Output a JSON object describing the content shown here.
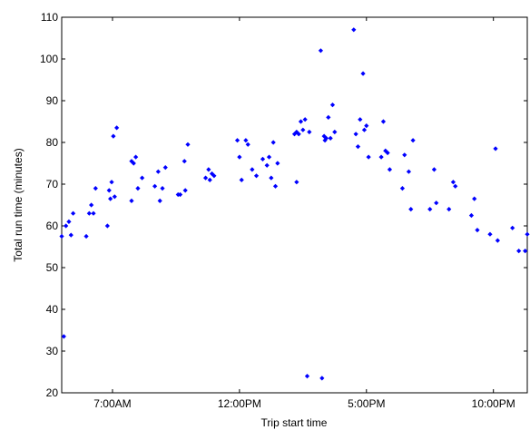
{
  "chart_data": {
    "type": "scatter",
    "title": "",
    "xlabel": "Trip start time",
    "ylabel": "Total run time (minutes)",
    "x_unit": "time of day (24h)",
    "xlim": [
      "05:00",
      "23:20"
    ],
    "ylim": [
      20,
      110
    ],
    "x_ticks": [
      {
        "value": "07:00",
        "label": "7:00AM"
      },
      {
        "value": "12:00",
        "label": "12:00PM"
      },
      {
        "value": "17:00",
        "label": "5:00PM"
      },
      {
        "value": "22:00",
        "label": "10:00PM"
      }
    ],
    "y_ticks": [
      20,
      30,
      40,
      50,
      60,
      70,
      80,
      90,
      100,
      110
    ],
    "marker_color": "#0000ff",
    "grid": false,
    "legend": "none",
    "points": [
      {
        "x": "05:00",
        "y": 57.5
      },
      {
        "x": "05:05",
        "y": 33.5
      },
      {
        "x": "05:10",
        "y": 60.0
      },
      {
        "x": "05:17",
        "y": 61.0
      },
      {
        "x": "05:22",
        "y": 57.8
      },
      {
        "x": "05:27",
        "y": 63.0
      },
      {
        "x": "05:58",
        "y": 57.5
      },
      {
        "x": "06:05",
        "y": 63.0
      },
      {
        "x": "06:10",
        "y": 65.0
      },
      {
        "x": "06:15",
        "y": 63.0
      },
      {
        "x": "06:20",
        "y": 69.0
      },
      {
        "x": "06:48",
        "y": 60.0
      },
      {
        "x": "06:52",
        "y": 68.5
      },
      {
        "x": "06:55",
        "y": 66.5
      },
      {
        "x": "06:58",
        "y": 70.5
      },
      {
        "x": "07:02",
        "y": 81.5
      },
      {
        "x": "07:05",
        "y": 67.0
      },
      {
        "x": "07:10",
        "y": 83.5
      },
      {
        "x": "07:45",
        "y": 66.0
      },
      {
        "x": "07:45",
        "y": 75.5
      },
      {
        "x": "07:50",
        "y": 75.0
      },
      {
        "x": "07:55",
        "y": 76.5
      },
      {
        "x": "08:00",
        "y": 69.0
      },
      {
        "x": "08:10",
        "y": 71.5
      },
      {
        "x": "08:40",
        "y": 69.5
      },
      {
        "x": "08:48",
        "y": 73.0
      },
      {
        "x": "08:52",
        "y": 66.0
      },
      {
        "x": "08:58",
        "y": 69.0
      },
      {
        "x": "09:05",
        "y": 74.0
      },
      {
        "x": "09:35",
        "y": 67.5
      },
      {
        "x": "09:40",
        "y": 67.5
      },
      {
        "x": "09:50",
        "y": 75.5
      },
      {
        "x": "09:52",
        "y": 68.5
      },
      {
        "x": "09:58",
        "y": 79.5
      },
      {
        "x": "10:40",
        "y": 71.5
      },
      {
        "x": "10:47",
        "y": 73.5
      },
      {
        "x": "10:50",
        "y": 71.0
      },
      {
        "x": "10:55",
        "y": 72.5
      },
      {
        "x": "11:00",
        "y": 72.0
      },
      {
        "x": "11:55",
        "y": 80.5
      },
      {
        "x": "12:00",
        "y": 76.5
      },
      {
        "x": "12:05",
        "y": 71.0
      },
      {
        "x": "12:15",
        "y": 80.5
      },
      {
        "x": "12:20",
        "y": 79.5
      },
      {
        "x": "12:30",
        "y": 73.5
      },
      {
        "x": "12:40",
        "y": 72.0
      },
      {
        "x": "12:55",
        "y": 76.0
      },
      {
        "x": "13:05",
        "y": 74.5
      },
      {
        "x": "13:10",
        "y": 76.5
      },
      {
        "x": "13:15",
        "y": 71.5
      },
      {
        "x": "13:20",
        "y": 80.0
      },
      {
        "x": "13:25",
        "y": 69.5
      },
      {
        "x": "13:30",
        "y": 75.0
      },
      {
        "x": "14:10",
        "y": 82.0
      },
      {
        "x": "14:15",
        "y": 82.5
      },
      {
        "x": "14:15",
        "y": 70.5
      },
      {
        "x": "14:20",
        "y": 82.0
      },
      {
        "x": "14:25",
        "y": 85.0
      },
      {
        "x": "14:30",
        "y": 83.0
      },
      {
        "x": "14:35",
        "y": 85.5
      },
      {
        "x": "14:40",
        "y": 24.0
      },
      {
        "x": "14:45",
        "y": 82.5
      },
      {
        "x": "15:12",
        "y": 102.0
      },
      {
        "x": "15:15",
        "y": 23.5
      },
      {
        "x": "15:20",
        "y": 81.5
      },
      {
        "x": "15:22",
        "y": 80.5
      },
      {
        "x": "15:25",
        "y": 81.0
      },
      {
        "x": "15:30",
        "y": 86.0
      },
      {
        "x": "15:35",
        "y": 81.0
      },
      {
        "x": "15:40",
        "y": 89.0
      },
      {
        "x": "15:45",
        "y": 82.5
      },
      {
        "x": "16:30",
        "y": 107.0
      },
      {
        "x": "16:35",
        "y": 82.0
      },
      {
        "x": "16:40",
        "y": 79.0
      },
      {
        "x": "16:45",
        "y": 85.5
      },
      {
        "x": "16:52",
        "y": 96.5
      },
      {
        "x": "16:55",
        "y": 83.0
      },
      {
        "x": "17:00",
        "y": 84.0
      },
      {
        "x": "17:05",
        "y": 76.5
      },
      {
        "x": "17:35",
        "y": 76.5
      },
      {
        "x": "17:40",
        "y": 85.0
      },
      {
        "x": "17:45",
        "y": 78.0
      },
      {
        "x": "17:50",
        "y": 77.5
      },
      {
        "x": "17:55",
        "y": 73.5
      },
      {
        "x": "18:25",
        "y": 69.0
      },
      {
        "x": "18:30",
        "y": 77.0
      },
      {
        "x": "18:40",
        "y": 73.0
      },
      {
        "x": "18:45",
        "y": 64.0
      },
      {
        "x": "18:50",
        "y": 80.5
      },
      {
        "x": "19:30",
        "y": 64.0
      },
      {
        "x": "19:40",
        "y": 73.5
      },
      {
        "x": "19:45",
        "y": 65.5
      },
      {
        "x": "20:15",
        "y": 64.0
      },
      {
        "x": "20:25",
        "y": 70.5
      },
      {
        "x": "20:30",
        "y": 69.5
      },
      {
        "x": "21:08",
        "y": 62.5
      },
      {
        "x": "21:15",
        "y": 66.5
      },
      {
        "x": "21:22",
        "y": 59.0
      },
      {
        "x": "21:52",
        "y": 58.0
      },
      {
        "x": "22:05",
        "y": 78.5
      },
      {
        "x": "22:10",
        "y": 56.5
      },
      {
        "x": "22:45",
        "y": 59.5
      },
      {
        "x": "23:00",
        "y": 54.0
      },
      {
        "x": "23:15",
        "y": 54.0
      },
      {
        "x": "23:20",
        "y": 58.0
      }
    ]
  }
}
